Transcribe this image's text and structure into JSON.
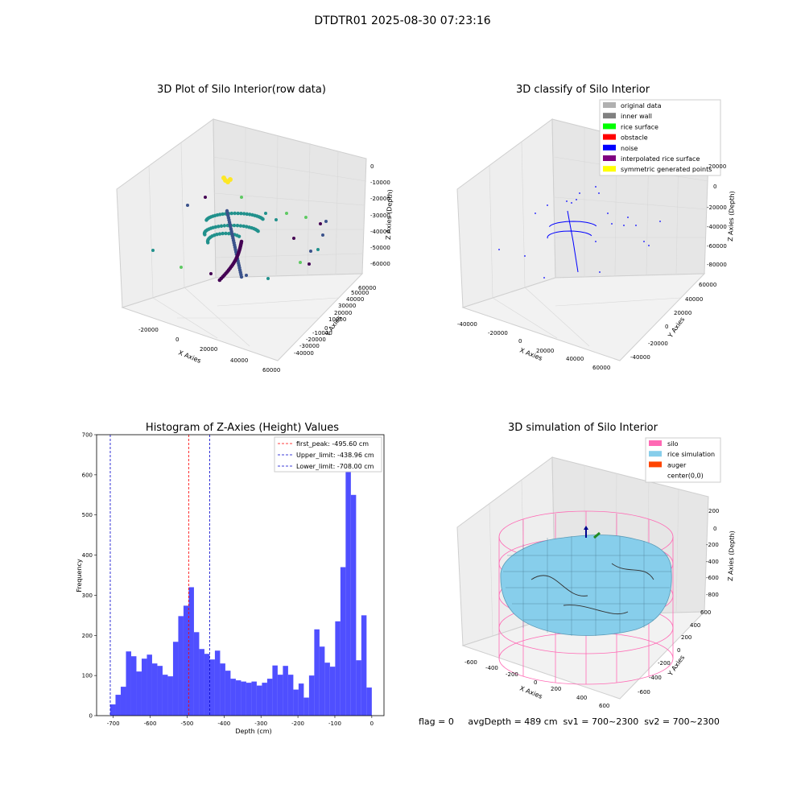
{
  "suptitle": "DTDTR01 2025-08-30 07:23:16",
  "footer": "flag = 0     avgDepth = 489 cm  sv1 = 700~2300  sv2 = 700~2300",
  "colors": {
    "hist_bar": "#4f4fff",
    "first_peak": "#ff0000",
    "limits": "#0000cc",
    "silo": "#ff69b4",
    "rice": "#87ceeb",
    "auger": "#ff4500",
    "noise": "#0000ff"
  },
  "chart_data": [
    {
      "type": "scatter",
      "title": "3D Plot of Silo Interior(row data)",
      "xlabel": "X Axies",
      "ylabel": "Y Axies",
      "zlabel": "Z Axies (Depth)",
      "x_ticks": [
        "-20000",
        "0",
        "20000",
        "40000",
        "60000"
      ],
      "y_ticks": [
        "-40000",
        "-30000",
        "-20000",
        "-10000",
        "0",
        "10000",
        "20000",
        "30000",
        "40000",
        "50000",
        "60000"
      ],
      "z_ticks": [
        "0",
        "-10000",
        "-20000",
        "-30000",
        "-40000",
        "-50000",
        "-60000"
      ],
      "colormap": "viridis"
    },
    {
      "type": "scatter",
      "title": "3D classify of Silo Interior",
      "xlabel": "X Axies",
      "ylabel": "Y Axies",
      "zlabel": "Z Axies (Depth)",
      "x_ticks": [
        "-40000",
        "-20000",
        "0",
        "20000",
        "40000",
        "60000"
      ],
      "y_ticks": [
        "-40000",
        "-20000",
        "0",
        "20000",
        "40000",
        "60000"
      ],
      "z_ticks": [
        "20000",
        "0",
        "-20000",
        "-40000",
        "-60000",
        "-80000"
      ],
      "legend": [
        {
          "label": "original data",
          "color": "#b0b0b0"
        },
        {
          "label": "inner wall",
          "color": "#808080"
        },
        {
          "label": "rice surface",
          "color": "#00ff00"
        },
        {
          "label": "obstacle",
          "color": "#ff0000"
        },
        {
          "label": "noise",
          "color": "#0000ff"
        },
        {
          "label": "interpolated rice surface",
          "color": "#800080"
        },
        {
          "label": "symmetric generated points",
          "color": "#ffff00"
        }
      ]
    },
    {
      "type": "bar",
      "title": "Histogram of Z-Axies (Height) Values",
      "xlabel": "Depth (cm)",
      "ylabel": "Frequency",
      "xlim": [
        -745,
        33
      ],
      "ylim": [
        0,
        700
      ],
      "x_ticks": [
        -700,
        -600,
        -500,
        -400,
        -300,
        -200,
        -100,
        0
      ],
      "y_ticks": [
        0,
        100,
        200,
        300,
        400,
        500,
        600,
        700
      ],
      "bin_start": -708,
      "bin_width": 14.16,
      "values": [
        28,
        52,
        72,
        160,
        148,
        110,
        142,
        152,
        130,
        124,
        102,
        98,
        184,
        248,
        274,
        320,
        208,
        166,
        154,
        140,
        162,
        130,
        112,
        92,
        88,
        85,
        82,
        85,
        75,
        82,
        92,
        125,
        102,
        124,
        102,
        65,
        80,
        45,
        100,
        215,
        172,
        132,
        122,
        235,
        370,
        640,
        550,
        138,
        250,
        70
      ],
      "vlines": [
        {
          "label": "first_peak: -495.60 cm",
          "x": -495.6,
          "color": "#ff0000"
        },
        {
          "label": "Upper_limit: -438.96 cm",
          "x": -438.96,
          "color": "#0000cc"
        },
        {
          "label": "Lower_limit: -708.00 cm",
          "x": -708.0,
          "color": "#0000cc"
        }
      ]
    },
    {
      "type": "area",
      "title": "3D simulation of Silo Interior",
      "xlabel": "X Axies",
      "ylabel": "Y Axies",
      "zlabel": "Z Axies (Depth)",
      "x_ticks": [
        "-600",
        "-400",
        "-200",
        "0",
        "200",
        "400",
        "600"
      ],
      "y_ticks": [
        "-600",
        "-400",
        "-200",
        "0",
        "200",
        "400",
        "600"
      ],
      "z_ticks": [
        "200",
        "0",
        "-200",
        "-400",
        "-600",
        "-800"
      ],
      "legend": [
        {
          "label": "silo",
          "color": "#ff69b4"
        },
        {
          "label": "rice simulation",
          "color": "#87ceeb"
        },
        {
          "label": "auger",
          "color": "#ff4500"
        },
        {
          "label": "center(0,0)",
          "color": ""
        }
      ]
    }
  ]
}
